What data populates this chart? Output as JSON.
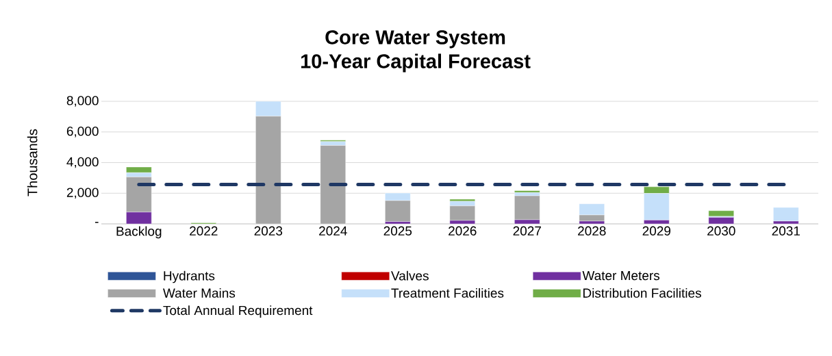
{
  "chart_data": {
    "type": "bar",
    "title": "Core Water System\n10-Year Capital Forecast",
    "ylabel": "Thousands",
    "stacked": true,
    "grid": "y",
    "legend": "bottom",
    "categories": [
      "Backlog",
      "2022",
      "2023",
      "2024",
      "2025",
      "2026",
      "2027",
      "2028",
      "2029",
      "2030",
      "2031"
    ],
    "series": [
      {
        "name": "Hydrants",
        "color": "#2f5597",
        "values": [
          0,
          0,
          0,
          0,
          0,
          0,
          0,
          0,
          0,
          0,
          0
        ]
      },
      {
        "name": "Valves",
        "color": "#c00000",
        "values": [
          0,
          0,
          0,
          0,
          0,
          0,
          0,
          0,
          0,
          0,
          0
        ]
      },
      {
        "name": "Water Meters",
        "color": "#7030a0",
        "values": [
          770,
          0,
          0,
          0,
          150,
          220,
          270,
          180,
          250,
          420,
          180
        ]
      },
      {
        "name": "Water Mains",
        "color": "#a5a5a5",
        "values": [
          2290,
          0,
          7030,
          5120,
          1370,
          950,
          1560,
          400,
          0,
          0,
          0
        ]
      },
      {
        "name": "Treatment Facilities",
        "color": "#c5e0fa",
        "values": [
          280,
          0,
          970,
          250,
          490,
          310,
          210,
          730,
          1740,
          70,
          890
        ]
      },
      {
        "name": "Distribution Facilities",
        "color": "#70ad47",
        "values": [
          370,
          70,
          0,
          90,
          0,
          130,
          130,
          0,
          430,
          370,
          0
        ]
      },
      {
        "name": "Total Annual Requirement",
        "type": "line",
        "line_style": "dashed",
        "color": "#1f3864",
        "values": [
          2570,
          2570,
          2570,
          2570,
          2570,
          2570,
          2570,
          2570,
          2570,
          2570,
          2570
        ]
      }
    ],
    "ylim": [
      0,
      8000
    ],
    "yticks": [
      {
        "value": 0,
        "label": "-"
      },
      {
        "value": 2000,
        "label": "2,000"
      },
      {
        "value": 4000,
        "label": "4,000"
      },
      {
        "value": 6000,
        "label": "6,000"
      },
      {
        "value": 8000,
        "label": "8,000"
      }
    ]
  }
}
